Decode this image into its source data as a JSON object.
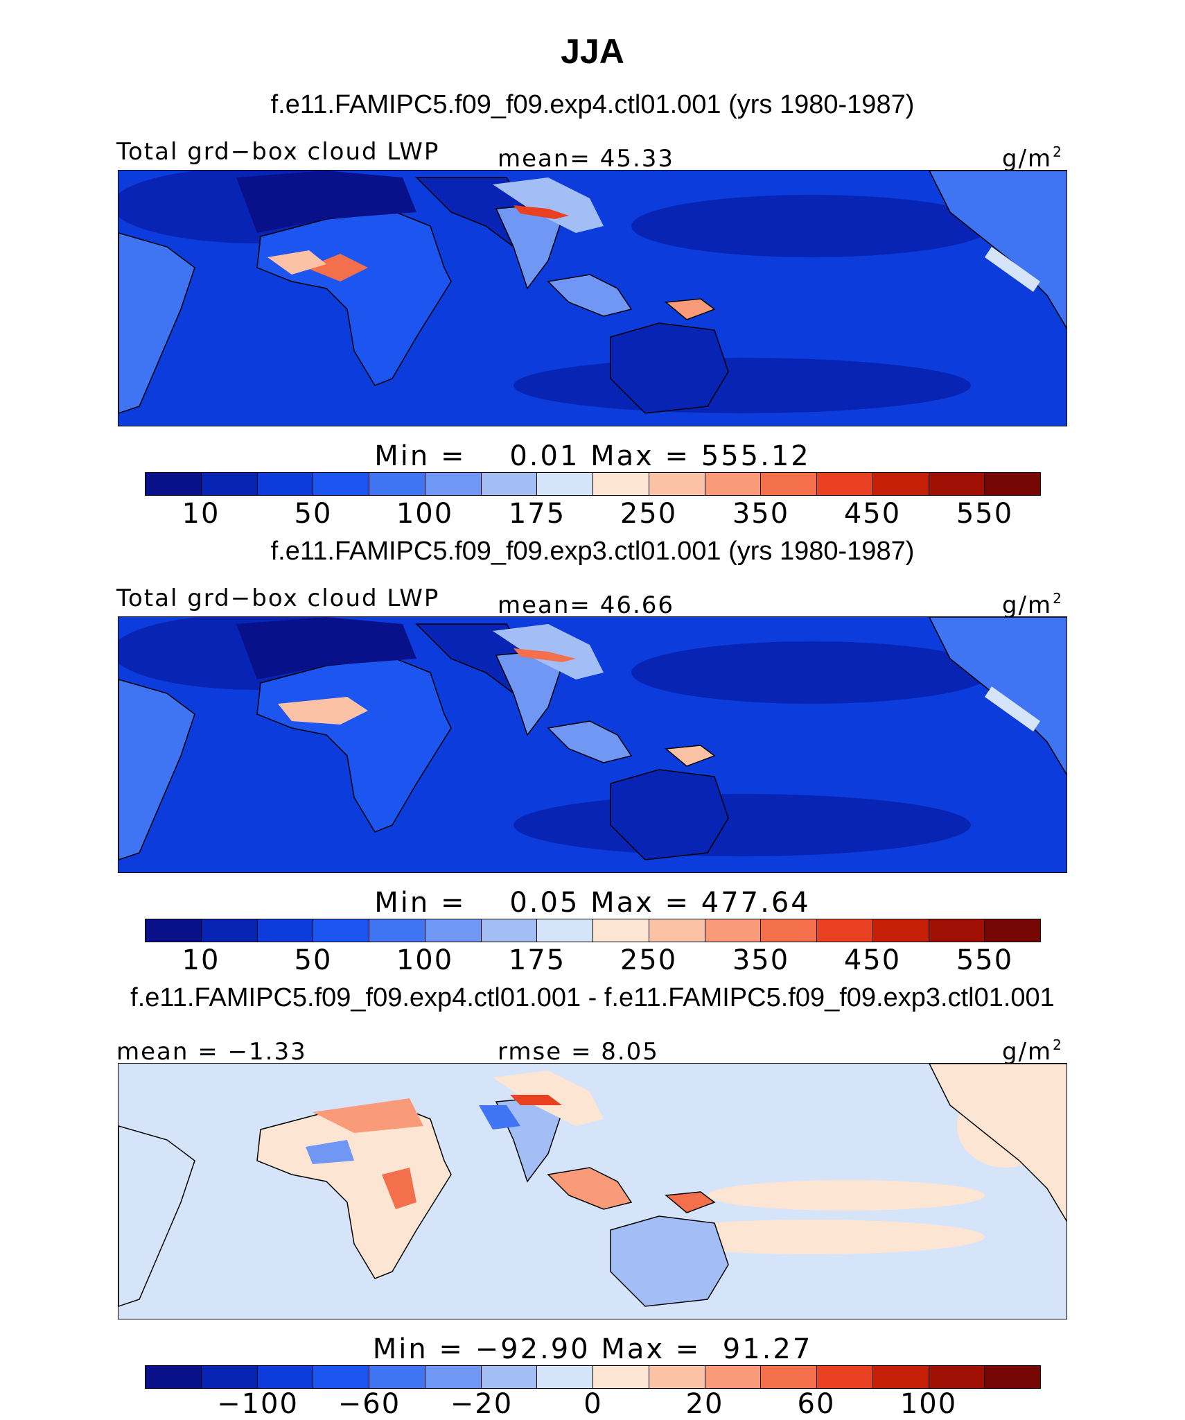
{
  "title": "JJA",
  "colors": {
    "abs_scale": [
      "#08118a",
      "#0724b5",
      "#0c3ddc",
      "#1c55f0",
      "#3f74f2",
      "#6f97f3",
      "#a3bdf5",
      "#d6e4fa",
      "#fde5d3",
      "#fcc2a6",
      "#f99a79",
      "#f46f4c",
      "#e84021",
      "#c51f07",
      "#a00f03",
      "#760704"
    ],
    "diff_scale": [
      "#08118a",
      "#0724b5",
      "#0c3ddc",
      "#1c55f0",
      "#3f74f2",
      "#6f97f3",
      "#a3bdf5",
      "#d6e4fa",
      "#fde5d3",
      "#fcc2a6",
      "#f99a79",
      "#f46f4c",
      "#e84021",
      "#c51f07",
      "#a00f03",
      "#760704"
    ]
  },
  "panels": [
    {
      "title": "f.e11.FAMIPC5.f09_f09.exp4.ctl01.001 (yrs 1980-1987)",
      "left_label": "Total grd−box cloud LWP",
      "center_label": "mean=  45.33",
      "unit": "g/m",
      "unit_sup": "2",
      "min_max": "Min =    0.01 Max = 555.12",
      "ticks": [
        "10",
        "50",
        "100",
        "175",
        "250",
        "350",
        "450",
        "550"
      ],
      "field": "abs"
    },
    {
      "title": "f.e11.FAMIPC5.f09_f09.exp3.ctl01.001 (yrs 1980-1987)",
      "left_label": "Total grd−box cloud LWP",
      "center_label": "mean=  46.66",
      "unit": "g/m",
      "unit_sup": "2",
      "min_max": "Min =    0.05 Max = 477.64",
      "ticks": [
        "10",
        "50",
        "100",
        "175",
        "250",
        "350",
        "450",
        "550"
      ],
      "field": "abs"
    },
    {
      "title": "f.e11.FAMIPC5.f09_f09.exp4.ctl01.001 - f.e11.FAMIPC5.f09_f09.exp3.ctl01.001",
      "left_label": "mean =  −1.33",
      "center_label": "rmse =   8.05",
      "unit": "g/m",
      "unit_sup": "2",
      "min_max": "Min = −92.90 Max =  91.27",
      "ticks": [
        "−100",
        "−60",
        "−20",
        "0",
        "20",
        "60",
        "100"
      ],
      "field": "diff"
    }
  ]
}
